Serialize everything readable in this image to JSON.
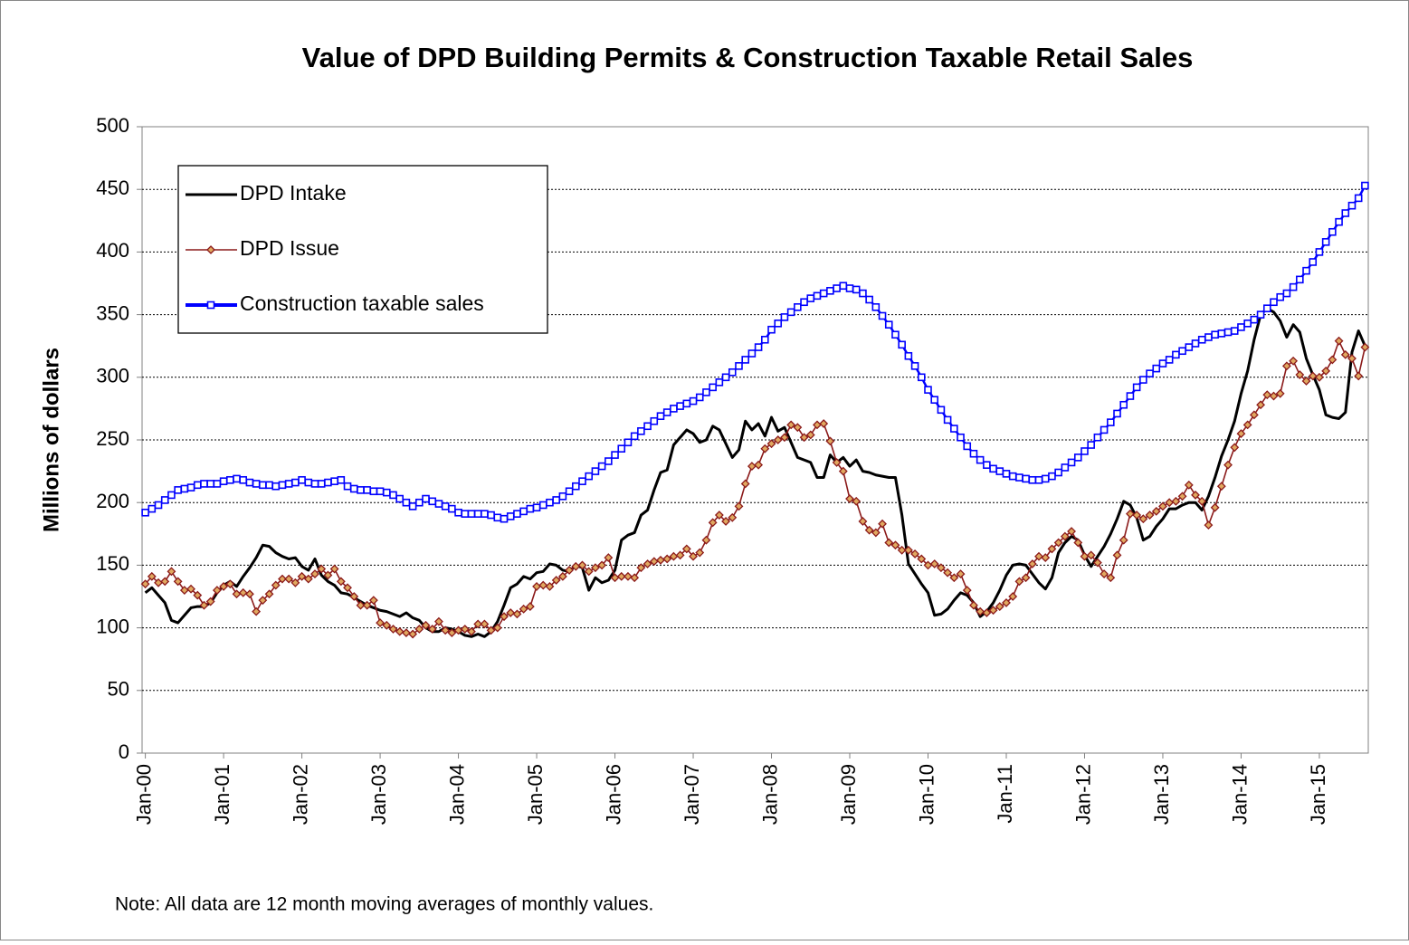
{
  "chart_data": {
    "type": "line",
    "title": "Value of DPD Building Permits & Construction Taxable Retail Sales",
    "y_label": "Millions of dollars",
    "note": "Note: All data are 12 month moving averages of monthly values.",
    "ylim": [
      0,
      500
    ],
    "yticks": [
      0,
      50,
      100,
      150,
      200,
      250,
      300,
      350,
      400,
      450,
      500
    ],
    "grid": true,
    "legend": "upper left",
    "categories": [
      "Jan-00",
      null,
      null,
      null,
      null,
      null,
      null,
      null,
      null,
      null,
      null,
      null,
      "Jan-01",
      null,
      null,
      null,
      null,
      null,
      null,
      null,
      null,
      null,
      null,
      null,
      "Jan-02",
      null,
      null,
      null,
      null,
      null,
      null,
      null,
      null,
      null,
      null,
      null,
      "Jan-03",
      null,
      null,
      null,
      null,
      null,
      null,
      null,
      null,
      null,
      null,
      null,
      "Jan-04",
      null,
      null,
      null,
      null,
      null,
      null,
      null,
      null,
      null,
      null,
      null,
      "Jan-05",
      null,
      null,
      null,
      null,
      null,
      null,
      null,
      null,
      null,
      null,
      null,
      "Jan-06",
      null,
      null,
      null,
      null,
      null,
      null,
      null,
      null,
      null,
      null,
      null,
      "Jan-07",
      null,
      null,
      null,
      null,
      null,
      null,
      null,
      null,
      null,
      null,
      null,
      "Jan-08",
      null,
      null,
      null,
      null,
      null,
      null,
      null,
      null,
      null,
      null,
      null,
      "Jan-09",
      null,
      null,
      null,
      null,
      null,
      null,
      null,
      null,
      null,
      null,
      null,
      "Jan-10",
      null,
      null,
      null,
      null,
      null,
      null,
      null,
      null,
      null,
      null,
      null,
      "Jan-11",
      null,
      null,
      null,
      null,
      null,
      null,
      null,
      null,
      null,
      null,
      null,
      "Jan-12",
      null,
      null,
      null,
      null,
      null,
      null,
      null,
      null,
      null,
      null,
      null,
      "Jan-13",
      null,
      null,
      null,
      null,
      null,
      null,
      null,
      null,
      null,
      null,
      null,
      "Jan-14",
      null,
      null,
      null,
      null,
      null,
      null,
      null,
      null,
      null,
      null,
      null,
      "Jan-15",
      null,
      null,
      null,
      null,
      null,
      null,
      null
    ],
    "series": [
      {
        "name": "DPD Intake",
        "color": "#000000",
        "values": [
          128,
          132,
          126,
          120,
          106,
          104,
          110,
          116,
          117,
          117,
          120,
          128,
          134,
          137,
          133,
          141,
          148,
          156,
          166,
          165,
          160,
          157,
          155,
          156,
          149,
          146,
          155,
          142,
          137,
          134,
          128,
          127,
          124,
          121,
          118,
          116,
          114,
          113,
          111,
          109,
          112,
          108,
          106,
          100,
          97,
          97,
          100,
          99,
          97,
          94,
          93,
          95,
          93,
          97,
          105,
          118,
          132,
          135,
          141,
          139,
          144,
          145,
          151,
          150,
          146,
          145,
          150,
          148,
          130,
          140,
          136,
          138,
          146,
          170,
          174,
          176,
          190,
          194,
          210,
          224,
          226,
          246,
          252,
          258,
          255,
          248,
          250,
          261,
          258,
          247,
          236,
          242,
          265,
          258,
          263,
          253,
          268,
          257,
          260,
          248,
          236,
          234,
          232,
          220,
          220,
          238,
          232,
          236,
          229,
          234,
          225,
          224,
          222,
          221,
          220,
          220,
          190,
          151,
          143,
          135,
          128,
          110,
          111,
          115,
          122,
          128,
          126,
          120,
          109,
          113,
          120,
          130,
          142,
          150,
          151,
          150,
          143,
          136,
          131,
          140,
          160,
          168,
          173,
          170,
          158,
          149,
          157,
          165,
          175,
          187,
          201,
          198,
          188,
          170,
          173,
          181,
          187,
          195,
          195,
          198,
          200,
          200,
          194,
          205,
          220,
          237,
          250,
          265,
          287,
          305,
          330,
          350,
          355,
          352,
          345,
          332,
          342,
          336,
          315,
          302,
          290,
          270,
          268,
          267,
          272,
          320,
          337,
          325
        ]
      },
      {
        "name": "DPD Issue",
        "color": "#8b1a1a",
        "marker": "diamond",
        "values": [
          135,
          141,
          136,
          137,
          145,
          137,
          130,
          131,
          126,
          118,
          121,
          130,
          133,
          135,
          127,
          128,
          127,
          113,
          122,
          127,
          134,
          139,
          139,
          136,
          141,
          139,
          143,
          147,
          142,
          147,
          137,
          132,
          125,
          118,
          118,
          122,
          104,
          102,
          99,
          97,
          96,
          95,
          99,
          102,
          99,
          105,
          98,
          96,
          98,
          99,
          97,
          103,
          103,
          98,
          100,
          109,
          112,
          111,
          115,
          117,
          133,
          134,
          133,
          138,
          141,
          146,
          149,
          150,
          145,
          148,
          150,
          156,
          140,
          141,
          141,
          140,
          148,
          151,
          153,
          154,
          155,
          157,
          158,
          163,
          157,
          160,
          170,
          184,
          190,
          185,
          188,
          197,
          215,
          229,
          230,
          243,
          247,
          250,
          252,
          262,
          260,
          252,
          254,
          262,
          263,
          249,
          232,
          225,
          203,
          201,
          185,
          178,
          176,
          183,
          168,
          166,
          162,
          162,
          159,
          155,
          150,
          151,
          148,
          144,
          140,
          143,
          130,
          118,
          113,
          112,
          114,
          117,
          120,
          125,
          137,
          140,
          151,
          157,
          156,
          163,
          168,
          173,
          177,
          168,
          157,
          158,
          152,
          143,
          140,
          158,
          170,
          191,
          190,
          187,
          190,
          193,
          197,
          200,
          201,
          205,
          214,
          206,
          201,
          182,
          196,
          213,
          230,
          244,
          255,
          262,
          270,
          278,
          286,
          285,
          287,
          309,
          313,
          302,
          297,
          301,
          300,
          305,
          314,
          329,
          318,
          315,
          301,
          324
        ]
      },
      {
        "name": "Construction taxable sales",
        "color": "#0000ff",
        "marker": "square",
        "values": [
          192,
          195,
          198,
          202,
          206,
          210,
          211,
          212,
          214,
          215,
          215,
          215,
          217,
          218,
          219,
          218,
          216,
          215,
          214,
          214,
          213,
          214,
          215,
          216,
          218,
          216,
          215,
          215,
          216,
          217,
          218,
          213,
          211,
          210,
          210,
          209,
          209,
          208,
          206,
          203,
          200,
          197,
          200,
          203,
          201,
          199,
          197,
          195,
          192,
          191,
          191,
          191,
          191,
          190,
          188,
          187,
          189,
          191,
          193,
          195,
          196,
          198,
          200,
          202,
          205,
          209,
          213,
          217,
          221,
          225,
          229,
          233,
          238,
          243,
          248,
          253,
          257,
          261,
          265,
          269,
          272,
          275,
          277,
          279,
          281,
          284,
          288,
          292,
          296,
          300,
          304,
          309,
          314,
          319,
          324,
          330,
          338,
          343,
          348,
          352,
          356,
          360,
          363,
          365,
          367,
          369,
          371,
          373,
          371,
          370,
          367,
          362,
          356,
          349,
          342,
          334,
          326,
          317,
          309,
          300,
          290,
          282,
          274,
          266,
          259,
          252,
          245,
          239,
          234,
          230,
          227,
          225,
          223,
          221,
          220,
          219,
          218,
          218,
          219,
          221,
          224,
          228,
          232,
          236,
          241,
          246,
          252,
          258,
          264,
          271,
          278,
          285,
          292,
          298,
          303,
          307,
          311,
          314,
          318,
          321,
          324,
          327,
          330,
          332,
          334,
          335,
          336,
          337,
          340,
          343,
          346,
          350,
          355,
          360,
          364,
          367,
          372,
          378,
          385,
          392,
          400,
          408,
          416,
          424,
          431,
          437,
          443,
          453
        ]
      }
    ]
  }
}
